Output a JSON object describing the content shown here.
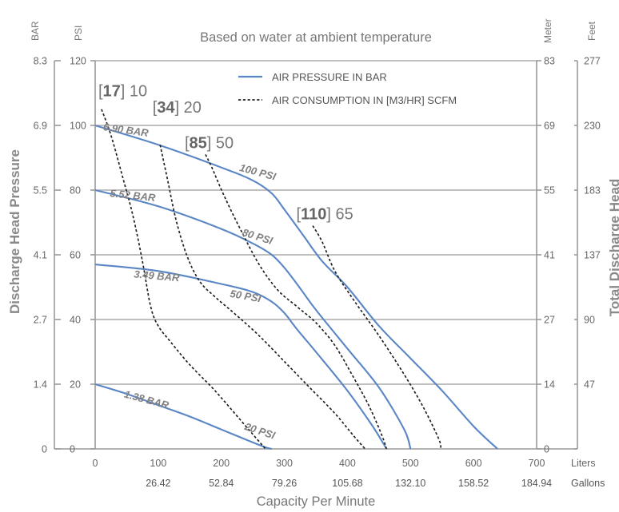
{
  "chart_data": {
    "type": "line",
    "title": "Based on water at ambient temperature",
    "xlabel": "Capacity Per Minute",
    "ylabel_left": "Discharge Head Pressure",
    "ylabel_right": "Total Discharge Head",
    "xlim": [
      0,
      700
    ],
    "ylim": [
      0,
      120
    ],
    "x_ticks": [
      0,
      100,
      200,
      300,
      400,
      500,
      600,
      700
    ],
    "x_tick_labels": [
      "0",
      "100",
      "200",
      "300",
      "400",
      "500",
      "600",
      "700"
    ],
    "x_unit_label": "Liters",
    "x_secondary_ticks": [
      100,
      200,
      300,
      400,
      500,
      600,
      700
    ],
    "x_secondary_labels": [
      "26.42",
      "52.84",
      "79.26",
      "105.68",
      "132.10",
      "158.52",
      "184.94"
    ],
    "x_secondary_unit": "Gallons",
    "y_ticks": [
      0,
      20,
      40,
      60,
      80,
      100,
      120
    ],
    "y_psi_labels": [
      "0",
      "20",
      "40",
      "60",
      "80",
      "100",
      "120"
    ],
    "y_psi_unit": "PSI",
    "y_bar_labels": [
      "0",
      "1.4",
      "2.7",
      "4.1",
      "5.5",
      "6.9",
      "8.3"
    ],
    "y_bar_unit": "BAR",
    "y_meter_labels": [
      "0",
      "14",
      "27",
      "41",
      "55",
      "69",
      "83"
    ],
    "y_meter_unit": "Meter",
    "y_feet_labels": [
      "",
      "47",
      "90",
      "137",
      "183",
      "230",
      "277"
    ],
    "y_feet_unit": "Feet",
    "grid": true,
    "legend": {
      "placement": "top-right",
      "entries": [
        {
          "label": "AIR PRESSURE IN BAR",
          "style": "solid",
          "color": "#5b86c5"
        },
        {
          "label": "AIR CONSUMPTION IN [M3/HR] SCFM",
          "style": "dotted",
          "color": "#222222"
        }
      ]
    },
    "series": [
      {
        "name": "6.90 BAR",
        "label": "6.90 BAR",
        "psi_label": "100 PSI",
        "style": "solid",
        "x": [
          0,
          100,
          200,
          250,
          280,
          300,
          330,
          360,
          400,
          450,
          500,
          550,
          600,
          638
        ],
        "y": [
          100,
          94,
          87,
          83,
          79,
          74,
          66,
          58,
          50,
          38,
          28,
          18,
          7,
          0
        ]
      },
      {
        "name": "5.52 BAR",
        "label": "5.52 BAR",
        "psi_label": "80 PSI",
        "style": "solid",
        "x": [
          0,
          100,
          200,
          250,
          280,
          300,
          320,
          350,
          400,
          450,
          490,
          500
        ],
        "y": [
          80,
          75,
          68,
          63.5,
          60,
          56,
          51,
          43,
          31,
          19,
          6,
          0
        ]
      },
      {
        "name": "3.49 BAR",
        "label": "3.49 BAR",
        "psi_label": "50 PSI",
        "style": "solid",
        "x": [
          0,
          100,
          200,
          250,
          280,
          300,
          320,
          350,
          400,
          440,
          462
        ],
        "y": [
          57,
          55,
          51,
          48.5,
          45.5,
          42,
          37,
          30,
          18,
          7,
          0
        ]
      },
      {
        "name": "1.38 BAR",
        "label": "1.38 BAR",
        "psi_label": "20 PSI",
        "style": "solid",
        "x": [
          0,
          50,
          100,
          150,
          200,
          250,
          270,
          280
        ],
        "y": [
          20,
          17,
          13.5,
          10,
          6,
          2,
          0.5,
          0
        ]
      },
      {
        "name": "[17] 10",
        "label_bracket": "17",
        "label_value": "10",
        "style": "dotted",
        "x": [
          10,
          25,
          45,
          60,
          75,
          88,
          100,
          120,
          150,
          190,
          230,
          270
        ],
        "y": [
          105,
          97,
          83,
          72,
          58,
          44,
          38,
          33,
          26,
          18,
          9,
          0
        ]
      },
      {
        "name": "[34] 20",
        "label_bracket": "34",
        "label_value": "20",
        "style": "dotted",
        "x": [
          103,
          115,
          128,
          145,
          165,
          190,
          220,
          260,
          300,
          340,
          380,
          410,
          428
        ],
        "y": [
          94,
          83,
          71,
          60,
          52,
          47,
          42,
          35,
          27,
          19,
          11,
          4,
          0
        ]
      },
      {
        "name": "[85] 50",
        "label_bracket": "85",
        "label_value": "50",
        "style": "dotted",
        "x": [
          175,
          185,
          205,
          230,
          260,
          290,
          320,
          350,
          380,
          410,
          435,
          455,
          462
        ],
        "y": [
          91,
          87,
          78,
          68,
          57,
          49,
          44,
          39,
          32,
          22,
          13,
          4,
          0
        ]
      },
      {
        "name": "[110] 65",
        "label_bracket": "110",
        "label_value": "65",
        "style": "dotted",
        "x": [
          345,
          360,
          380,
          410,
          450,
          490,
          520,
          545,
          548
        ],
        "y": [
          69,
          64,
          55,
          46,
          35,
          23,
          13,
          3,
          0
        ]
      }
    ]
  }
}
